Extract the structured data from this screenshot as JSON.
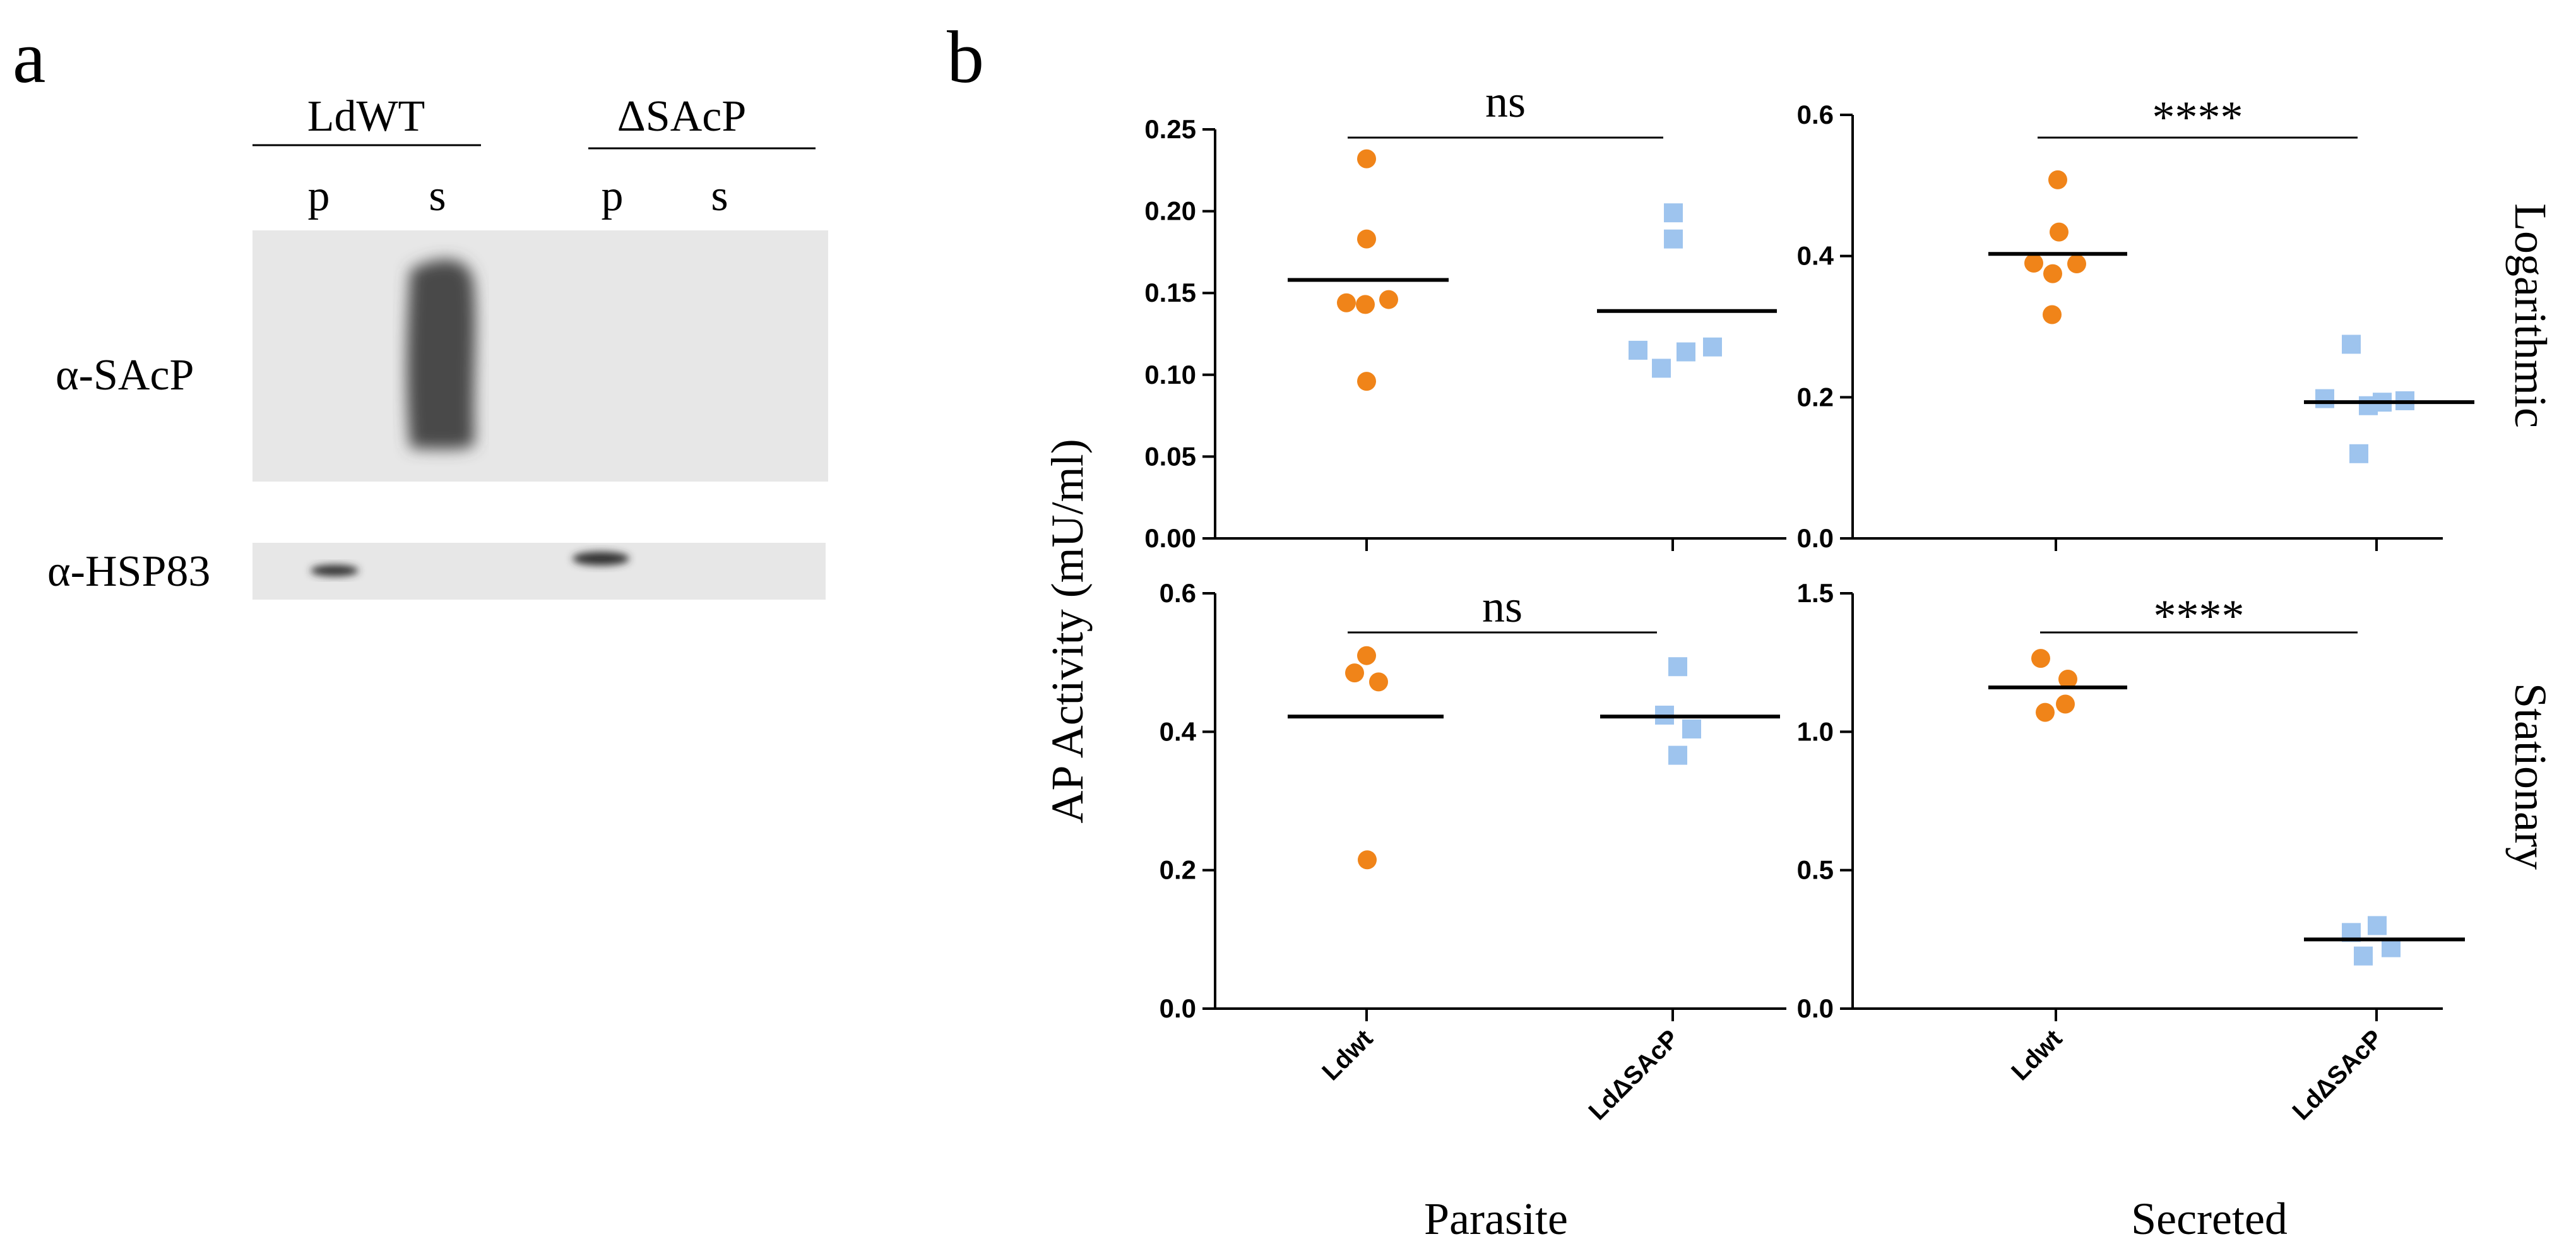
{
  "panel_a": {
    "label": "a",
    "groups": [
      "LdWT",
      "ΔSAcP"
    ],
    "lanes": [
      "p",
      "s",
      "p",
      "s"
    ],
    "blots": [
      {
        "label": "α-SAcP"
      },
      {
        "label": "α-HSP83"
      }
    ]
  },
  "panel_b": {
    "label": "b",
    "ylabel": "AP Activity  (mU/ml)",
    "row_labels": [
      "Logarithmic",
      "Stationary"
    ],
    "col_labels": [
      "Parasite",
      "Secreted"
    ],
    "x_categories": [
      "Ldwt",
      "LdΔSAcP"
    ]
  },
  "colors": {
    "wt": "#f08419",
    "ko": "#9ec4ee",
    "axis": "#000000"
  },
  "chart_data": [
    {
      "type": "scatter",
      "title": "Logarithmic / Parasite",
      "categories": [
        "Ldwt",
        "LdΔSAcP"
      ],
      "ylim": [
        0,
        0.25
      ],
      "yticks": [
        "0.00",
        "0.05",
        "0.10",
        "0.15",
        "0.20",
        "0.25"
      ],
      "significance": "ns",
      "series": [
        {
          "name": "Ldwt",
          "values": [
            0.232,
            0.183,
            0.144,
            0.143,
            0.146,
            0.096
          ],
          "mean": 0.158
        },
        {
          "name": "LdΔSAcP",
          "values": [
            0.199,
            0.183,
            0.115,
            0.104,
            0.114,
            0.117
          ],
          "mean": 0.139
        }
      ]
    },
    {
      "type": "scatter",
      "title": "Logarithmic / Secreted",
      "categories": [
        "Ldwt",
        "LdΔSAcP"
      ],
      "ylim": [
        0,
        0.6
      ],
      "yticks": [
        "0.0",
        "0.2",
        "0.4",
        "0.6"
      ],
      "significance": "****",
      "series": [
        {
          "name": "Ldwt",
          "values": [
            0.508,
            0.434,
            0.39,
            0.389,
            0.375,
            0.317
          ],
          "mean": 0.403
        },
        {
          "name": "LdΔSAcP",
          "values": [
            0.275,
            0.198,
            0.195,
            0.188,
            0.193,
            0.12
          ],
          "mean": 0.193
        }
      ]
    },
    {
      "type": "scatter",
      "title": "Stationary / Parasite",
      "categories": [
        "Ldwt",
        "LdΔSAcP"
      ],
      "ylim": [
        0,
        0.6
      ],
      "yticks": [
        "0.0",
        "0.2",
        "0.4",
        "0.6"
      ],
      "significance": "ns",
      "series": [
        {
          "name": "Ldwt",
          "values": [
            0.51,
            0.485,
            0.472,
            0.215
          ],
          "mean": 0.422
        },
        {
          "name": "LdΔSAcP",
          "values": [
            0.494,
            0.424,
            0.404,
            0.366
          ],
          "mean": 0.422
        }
      ]
    },
    {
      "type": "scatter",
      "title": "Stationary / Secreted",
      "categories": [
        "Ldwt",
        "LdΔSAcP"
      ],
      "ylim": [
        0,
        1.5
      ],
      "yticks": [
        "0.0",
        "0.5",
        "1.0",
        "1.5"
      ],
      "significance": "****",
      "series": [
        {
          "name": "Ldwt",
          "values": [
            1.265,
            1.19,
            1.1,
            1.07
          ],
          "mean": 1.16
        },
        {
          "name": "LdΔSAcP",
          "values": [
            0.3,
            0.275,
            0.22,
            0.19
          ],
          "mean": 0.25
        }
      ]
    }
  ]
}
